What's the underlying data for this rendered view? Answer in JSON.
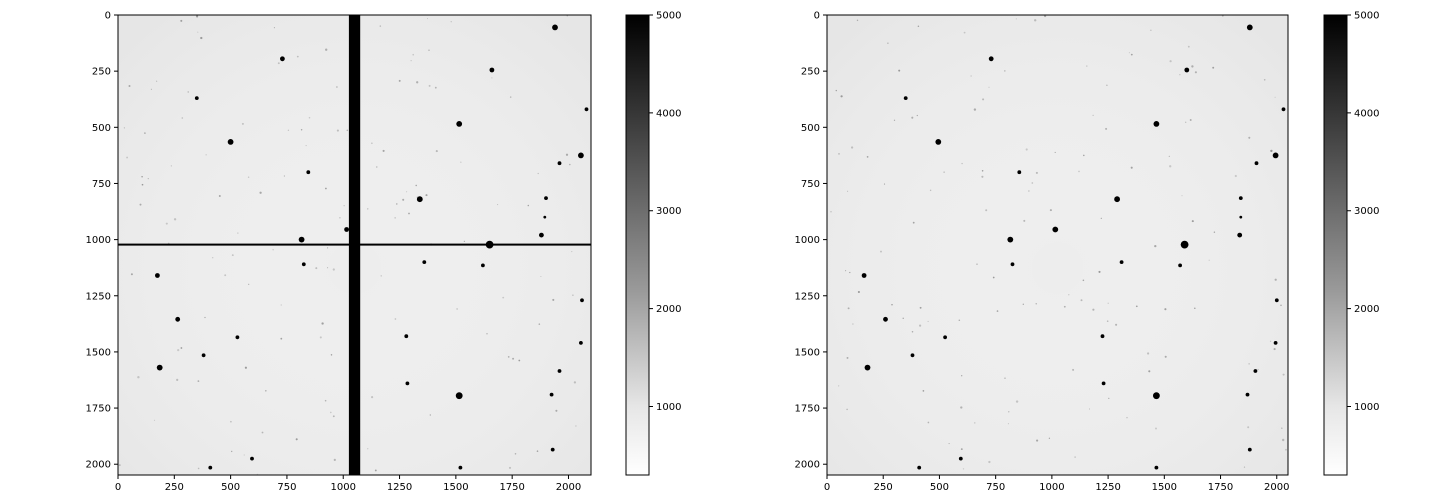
{
  "chart_data": [
    {
      "type": "heatmap",
      "panel": "left",
      "x_ticks": [
        "0",
        "250",
        "500",
        "750",
        "1000",
        "1250",
        "1500",
        "1750",
        "2000"
      ],
      "y_ticks": [
        "0",
        "250",
        "500",
        "750",
        "1000",
        "1250",
        "1500",
        "1750",
        "2000"
      ],
      "xlim": [
        0,
        2100
      ],
      "ylim": [
        2048,
        0
      ],
      "colorbar": {
        "ticks": [
          "1000",
          "2000",
          "3000",
          "4000",
          "5000"
        ],
        "range": [
          300,
          5000
        ],
        "cmap": "Greys"
      },
      "features": {
        "vertical_band": {
          "x_from": 1025,
          "x_to": 1075
        },
        "horizontal_line": {
          "y": 1022
        }
      },
      "stars": [
        [
          1940,
          55,
          5
        ],
        [
          730,
          195,
          4
        ],
        [
          1660,
          245,
          4
        ],
        [
          2080,
          420,
          3
        ],
        [
          350,
          370,
          3
        ],
        [
          1515,
          485,
          5
        ],
        [
          500,
          565,
          5
        ],
        [
          2055,
          625,
          5
        ],
        [
          1960,
          660,
          3
        ],
        [
          1340,
          820,
          5
        ],
        [
          845,
          700,
          3
        ],
        [
          1900,
          815,
          3
        ],
        [
          815,
          1000,
          5
        ],
        [
          1015,
          955,
          4
        ],
        [
          1650,
          1022,
          7
        ],
        [
          1880,
          980,
          4
        ],
        [
          825,
          1110,
          3
        ],
        [
          1620,
          1115,
          3
        ],
        [
          175,
          1160,
          4
        ],
        [
          265,
          1355,
          4
        ],
        [
          1280,
          1430,
          3
        ],
        [
          380,
          1515,
          3
        ],
        [
          185,
          1570,
          5
        ],
        [
          1515,
          1695,
          6
        ],
        [
          1925,
          1690,
          3
        ],
        [
          1930,
          1935,
          3
        ],
        [
          2060,
          1270,
          3
        ],
        [
          1360,
          1100,
          3
        ],
        [
          1285,
          1640,
          3
        ],
        [
          595,
          1975,
          3
        ],
        [
          410,
          2015,
          3
        ],
        [
          1520,
          2015,
          3
        ],
        [
          530,
          1435,
          3
        ],
        [
          1960,
          1585,
          3
        ],
        [
          2055,
          1460,
          3
        ],
        [
          1895,
          900,
          2
        ]
      ]
    },
    {
      "type": "heatmap",
      "panel": "right",
      "x_ticks": [
        "0",
        "250",
        "500",
        "750",
        "1000",
        "1250",
        "1500",
        "1750",
        "2000"
      ],
      "y_ticks": [
        "0",
        "250",
        "500",
        "750",
        "1000",
        "1250",
        "1500",
        "1750",
        "2000"
      ],
      "xlim": [
        0,
        2050
      ],
      "ylim": [
        2048,
        0
      ],
      "colorbar": {
        "ticks": [
          "1000",
          "2000",
          "3000",
          "4000",
          "5000"
        ],
        "range": [
          300,
          5000
        ],
        "cmap": "Greys"
      },
      "stars": [
        [
          1880,
          55,
          5
        ],
        [
          730,
          195,
          4
        ],
        [
          1600,
          245,
          4
        ],
        [
          2030,
          420,
          3
        ],
        [
          350,
          370,
          3
        ],
        [
          1465,
          485,
          5
        ],
        [
          495,
          565,
          5
        ],
        [
          1995,
          625,
          5
        ],
        [
          1910,
          660,
          3
        ],
        [
          1290,
          820,
          5
        ],
        [
          855,
          700,
          3
        ],
        [
          1840,
          815,
          3
        ],
        [
          815,
          1000,
          5
        ],
        [
          1015,
          955,
          5
        ],
        [
          1590,
          1022,
          7
        ],
        [
          1835,
          980,
          4
        ],
        [
          825,
          1110,
          3
        ],
        [
          1570,
          1115,
          3
        ],
        [
          165,
          1160,
          4
        ],
        [
          260,
          1355,
          4
        ],
        [
          1225,
          1430,
          3
        ],
        [
          380,
          1515,
          3
        ],
        [
          180,
          1570,
          5
        ],
        [
          1465,
          1695,
          6
        ],
        [
          1870,
          1690,
          3
        ],
        [
          1880,
          1935,
          3
        ],
        [
          2000,
          1270,
          3
        ],
        [
          1310,
          1100,
          3
        ],
        [
          1230,
          1640,
          3
        ],
        [
          595,
          1975,
          3
        ],
        [
          410,
          2015,
          3
        ],
        [
          1465,
          2015,
          3
        ],
        [
          525,
          1435,
          3
        ],
        [
          1905,
          1585,
          3
        ],
        [
          1995,
          1460,
          3
        ],
        [
          1840,
          900,
          2
        ]
      ]
    }
  ]
}
